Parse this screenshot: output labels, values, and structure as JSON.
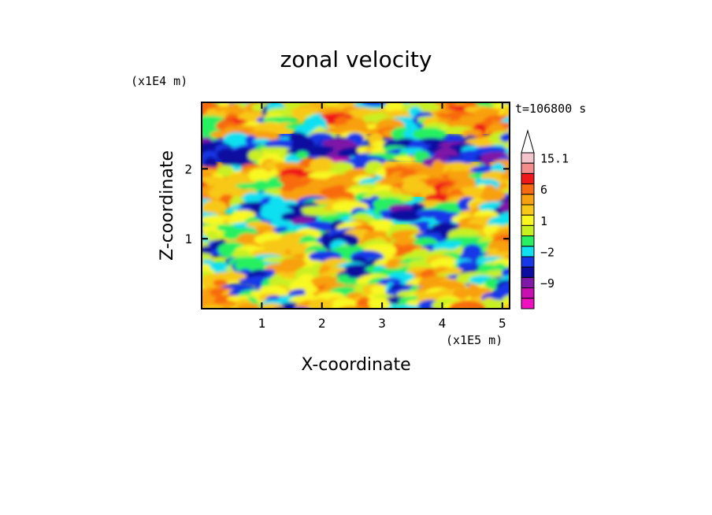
{
  "chart_data": {
    "type": "heatmap",
    "title": "zonal velocity",
    "xlabel": "X-coordinate",
    "ylabel": "Z-coordinate",
    "x_unit": "(x1E5 m)",
    "y_unit": "(x1E4 m)",
    "time_label": "t=106800 s",
    "xlim": [
      0,
      5.12
    ],
    "ylim": [
      0,
      2.95
    ],
    "x_ticks": [
      {
        "value": 1,
        "label": "1"
      },
      {
        "value": 2,
        "label": "2"
      },
      {
        "value": 3,
        "label": "3"
      },
      {
        "value": 4,
        "label": "4"
      },
      {
        "value": 5,
        "label": "5"
      }
    ],
    "y_ticks": [
      {
        "value": 1,
        "label": "1"
      },
      {
        "value": 2,
        "label": "2"
      }
    ],
    "colorbar": {
      "extend": "max",
      "levels": [
        {
          "lower": 15.1,
          "color": "#f4c4cc"
        },
        {
          "lower": 11,
          "color": "#f48c8c"
        },
        {
          "lower": 8,
          "color": "#f01818"
        },
        {
          "lower": 6,
          "color": "#f86a10"
        },
        {
          "lower": 3.5,
          "color": "#f8a010"
        },
        {
          "lower": 2,
          "color": "#f8c818"
        },
        {
          "lower": 1,
          "color": "#f8f820"
        },
        {
          "lower": 0,
          "color": "#c8f020"
        },
        {
          "lower": -1,
          "color": "#28f060"
        },
        {
          "lower": -2,
          "color": "#10e0f0"
        },
        {
          "lower": -4,
          "color": "#1838e8"
        },
        {
          "lower": -6,
          "color": "#0c0ca0"
        },
        {
          "lower": -9,
          "color": "#8018a8"
        },
        {
          "lower": -12,
          "color": "#c810b0"
        },
        {
          "lower": -16,
          "color": "#f010c0"
        }
      ],
      "labels": [
        {
          "value": 15.1,
          "label": "15.1"
        },
        {
          "value": 6,
          "label": "6"
        },
        {
          "value": 1,
          "label": "1"
        },
        {
          "value": -2,
          "label": "−2"
        },
        {
          "value": -9,
          "label": "−9"
        }
      ]
    },
    "field_bands": [
      {
        "z": [
          0.0,
          0.45
        ],
        "dominant_value": 1.5,
        "note": "yellow/green near surface"
      },
      {
        "z": [
          0.45,
          1.2
        ],
        "dominant_value": 0.5,
        "note": "mixed yellow and green"
      },
      {
        "z": [
          1.2,
          1.6
        ],
        "dominant_value": -1.5,
        "note": "green/cyan band"
      },
      {
        "z": [
          1.6,
          2.1
        ],
        "dominant_value": 3.5,
        "note": "orange band with yellow"
      },
      {
        "z": [
          2.1,
          2.5
        ],
        "dominant_value": -3,
        "note": "cyan/blue band"
      },
      {
        "z": [
          2.5,
          2.95
        ],
        "dominant_value": 2.5,
        "note": "yellow/orange top"
      }
    ]
  }
}
